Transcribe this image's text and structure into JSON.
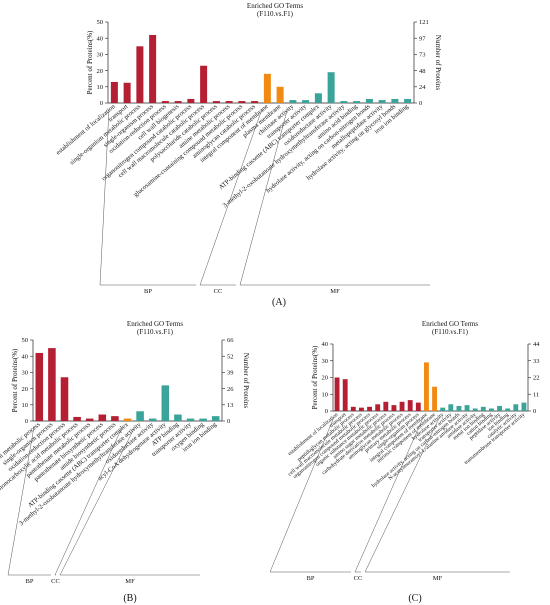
{
  "colors": {
    "BP": "#b51f34",
    "CC": "#f08a12",
    "MF": "#3aa39a",
    "axis": "#222222"
  },
  "chart_data": [
    {
      "panel": "(A)",
      "type": "bar",
      "title": "Enriched GO Terms",
      "subtitle": "(F110.vs.F1)",
      "ylabel": "Percent of Proteins(%)",
      "y2label": "Number of Proteins",
      "ylim": [
        0,
        50
      ],
      "yticks": [
        0,
        10,
        20,
        30,
        40,
        50
      ],
      "y2ticks": [
        "0",
        "24",
        "48",
        "73",
        "97",
        "121"
      ],
      "groups": [
        {
          "name": "BP",
          "color": "BP",
          "start": 0,
          "end": 11
        },
        {
          "name": "CC",
          "color": "CC",
          "start": 12,
          "end": 13
        },
        {
          "name": "MF",
          "color": "MF",
          "start": 14,
          "end": 23
        }
      ],
      "categories": [
        "establishment of localization",
        "transport",
        "single-organism metabolic process",
        "single-organism process",
        "oxidation-reduction process",
        "cell wall biogenesis",
        "organonitrogen compound catabolic process",
        "cell wall macromolecule catabolic process",
        "polysaccharide catabolic process",
        "amine metabolic process",
        "glucosamine-containing compound metabolic process",
        "aminoglycan catabolic process",
        "integral component of membrane",
        "plasma membrane",
        "chitinase activity",
        "transporter activity",
        "ATP-binding cassette (ABC) transporter complex",
        "oxidoreductase activity",
        "3-methyl-2-oxobutanoate hydroxymethyltransferase activity",
        "amino acid binding",
        "hydrolase activity, acting on carbon-nitrogen bonds",
        "metallopeptidase activity",
        "hydrolase activity, acting on glycosyl bonds",
        "iron ion binding"
      ],
      "values": [
        13,
        12.5,
        35,
        42,
        1.2,
        1.2,
        2.5,
        23,
        1.2,
        1.2,
        1.2,
        1.2,
        18,
        10,
        1.8,
        1.8,
        6,
        19,
        1.2,
        1.2,
        2.5,
        1.8,
        2.5,
        2.5
      ]
    },
    {
      "panel": "(B)",
      "type": "bar",
      "title": "Enriched GO Terms",
      "subtitle": "(F110.vs.F1)",
      "ylabel": "Percent of Proteins(%)",
      "y2label": "Number of Proteins",
      "ylim": [
        0,
        50
      ],
      "yticks": [
        0,
        10,
        20,
        30,
        40,
        50
      ],
      "y2ticks": [
        "0",
        "13",
        "26",
        "39",
        "52",
        "66"
      ],
      "groups": [
        {
          "name": "BP",
          "color": "BP",
          "start": 0,
          "end": 6
        },
        {
          "name": "CC",
          "color": "CC",
          "start": 7,
          "end": 7
        },
        {
          "name": "MF",
          "color": "MF",
          "start": 8,
          "end": 14
        }
      ],
      "categories": [
        "single-organism metabolic process",
        "single-organism process",
        "oxidation-reduction process",
        "monocarboxylic acid metabolic process",
        "pantothenate metabolic process",
        "pantothenate biosynthetic process",
        "amide biosynthetic process",
        "ATP-binding cassette (ABC) transporter complex",
        "3-methyl-2-oxobutanoate hydroxymethyltransferase activity",
        "oxidoreductase activity",
        "acyl-CoA dehydrogenase activity",
        "ATP binding",
        "transporter activity",
        "oxygen binding",
        "iron ion binding"
      ],
      "values": [
        42,
        45,
        27,
        2.5,
        1.5,
        4,
        3,
        1.5,
        6,
        1.5,
        22,
        4,
        1.5,
        1.5,
        3
      ]
    },
    {
      "panel": "(C)",
      "type": "bar",
      "title": "Enriched GO Terms",
      "subtitle": "(F110.vs.F1)",
      "ylabel": "Percent of Proteins(%)",
      "y2label": "Number of Proteins",
      "ylim": [
        0,
        40
      ],
      "yticks": [
        0,
        10,
        20,
        30,
        40
      ],
      "y2ticks": [
        "0",
        "11",
        "22",
        "33",
        "44"
      ],
      "groups": [
        {
          "name": "BP",
          "color": "BP",
          "start": 0,
          "end": 10
        },
        {
          "name": "CC",
          "color": "CC",
          "start": 11,
          "end": 12
        },
        {
          "name": "MF",
          "color": "MF",
          "start": 13,
          "end": 23
        }
      ],
      "categories": [
        "establishment of localization",
        "transport",
        "peptidoglycan metabolic process",
        "cell wall macromolecule metabolic process",
        "organonitrogen compound metabolic process",
        "organic substance metabolic process",
        "amino sugar metabolic process",
        "carbohydrate derivative metabolic process",
        "aminoglycan metabolic process",
        "primary metabolic process",
        "single-organism process",
        "integral component of membrane",
        "intrinsic component of membrane",
        "hydrolase activity",
        "transporter activity",
        "hydrolase activity, acting on carbon-nitrogen bonds",
        "N-acetylmuramoyl-L-alanine amidase activity",
        "amidase activity",
        "metal ion binding",
        "cation binding",
        "peptidase activity",
        "ion binding",
        "catalytic activity",
        "transmembrane transporter activity"
      ],
      "values": [
        20,
        19,
        2.5,
        2,
        2.5,
        4,
        5.5,
        3.5,
        5.5,
        6.5,
        5,
        29,
        14.5,
        2,
        4,
        3,
        3.5,
        1.5,
        2.5,
        1.5,
        3,
        1.5,
        4,
        5
      ]
    }
  ],
  "panel_labels": [
    "(A)",
    "(B)",
    "(C)"
  ]
}
